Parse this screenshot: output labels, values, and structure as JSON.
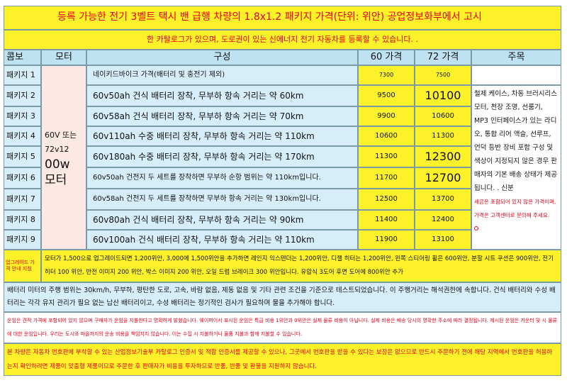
{
  "header": {
    "title": "등록 가능한 전기 3벨트 택시 밴 급행 차량의 1.8x1.2 패키지 가격(단위: 위안) 공업정보화부에서 고시",
    "subtitle": "한 카탈로그가 있으며, 도로권이 있는 신에너지 전기 자동차를 등록할 수 있습니다. ."
  },
  "table": {
    "columns": [
      "콤보",
      "모터",
      "구성",
      "60 가격",
      "72 가격",
      "주목"
    ],
    "motor": {
      "line1": "60V 또는 72v12",
      "line2": "00w 모터"
    },
    "rows": [
      {
        "name": "패키지 1",
        "config": "네이키드바이크 가격(배터리 및 충전기 제외)",
        "price60": 7300,
        "price72": 7500
      },
      {
        "name": "패키지 2",
        "config": "60v50ah 건식 배터리 장착, 무부하 항속 거리는 약 60km",
        "price60": 9500,
        "price72": 10100
      },
      {
        "name": "패키지 3",
        "config": "60v58ah 건식 배터리 장착, 무부하 항속 거리는 약 70km",
        "price60": 9900,
        "price72": 10600
      },
      {
        "name": "패키지 4",
        "config": "60v110ah 수중 배터리 장착, 무부하 항속 거리는 약 110km",
        "price60": 10600,
        "price72": 11300
      },
      {
        "name": "패키지 5",
        "config": "60v180ah 수중 배터리 장착, 무부하 항속 거리는 약 170km",
        "price60": 11300,
        "price72": 12300
      },
      {
        "name": "패키지 6",
        "config": "60v50ah 건전지 두 세트를 장착하면 무부하 순항 범위는 약 110km입니다.",
        "price60": 11700,
        "price72": 12700
      },
      {
        "name": "패키지 7",
        "config": "60v58ah 건전지 두 세트를 장착하면 무부하 항속 거리는 약 130km입니다.",
        "price60": 12500,
        "price72": 13700
      },
      {
        "name": "패키지 8",
        "config": "60v80ah 건식 배터리 장착, 무부하 항속 거리는 약 90km",
        "price60": 11400,
        "price72": 12400
      },
      {
        "name": "패키지 9",
        "config": "60v100ah 건식 배터리 장착, 무부하 항속 거리는 약 110km",
        "price60": 11900,
        "price72": 13100
      }
    ],
    "notes": {
      "main": "철제 케이스, 차동 브러시리스 모터, 천장 조명, 선룸기, MP3 인터페이스가 있는 라디오, 통합 리어 액슬, 선루프, 언덕 등반 장비 포함 구성 및 색상이 지정되지 않은 경우 판매자의 기본 배송 상태가 제공됩니다. . 신분",
      "tax": "세금은 포함되어 있지 않은 가격이며, 가격은 고객센터로 문의해 주세요."
    }
  },
  "footer": {
    "upgrade_label": "업그레이드 가격 안내 지침",
    "upgrade": "모터가 1,500으로 업그레이드되면 1,200위안, 3,000에 1,500위안을 추가하면 레인지 익스텐더는 1,200위안, 디젤 히터는 1,200위안, 왼쪽 스티어링 휠은 600위안, 분할 시트 쿠션은 900위안, 전기 히터 100 위안, 반전 이미지 200 위안, 박스 이미지 200 위안, 오일 드럼 브레이크 300 위안입니다. 유압식 3도어 후면 도어에 800위안 추가",
    "battery": "배터리 미터의 주행 범위는 30km/h, 무부하, 평탄한 도로, 고속, 바람 없음, 제동 없음 및 기타 관련 조건을 기준으로 테스트되었습니다. 이 주행거리는 해석권한에 속합니다. 건식 배터리와 수성 배터리는 각각 유지 관리가 필요 없는 납산 배터리이고, 수성 배터리는 정기적인 검사가 필요하며 물을 추가해야 합니다.",
    "shipping": "운임은 견적 가격에 포함되어 있지 않으며 구매자가 운임을 지불한다고 명확하게 밝혔습니다. 웨이퍼이서 표시된 운임은 특급 비용 1위안과 0위안은 실제 물류 비용이 아닙니다. 실제 비용은 배송 당시의 명확한 주소에 따라 결정됩니다. 제시된 운임은 카운터 및 시 물류에 대한 운임입니다. 우리는 도시와 마을까지의 운송 비용을 책임지지 않습니다. 이는 수집 시 지불하거나 물품 지불과 함께 지불할 수 있습니다.",
    "disclaimer": "본 차량은 자동차 번호판에 부착할 수 있는 산업정보기술부 카탈로그 인증서 및 적합 인증서를 제공할 수 있으나, 그곳에서 번호판을 받을 수 있다는 보장은 없으므로 반드시 주문하기 전에 해당 지역에서 번호판을 허용하는지 확인하려면 제품이 맞춤형 제품이므로 주문한 후 판매자가 비용을 투자하므로 반품, 반품 및 환불을 지원하지 않습니다."
  }
}
